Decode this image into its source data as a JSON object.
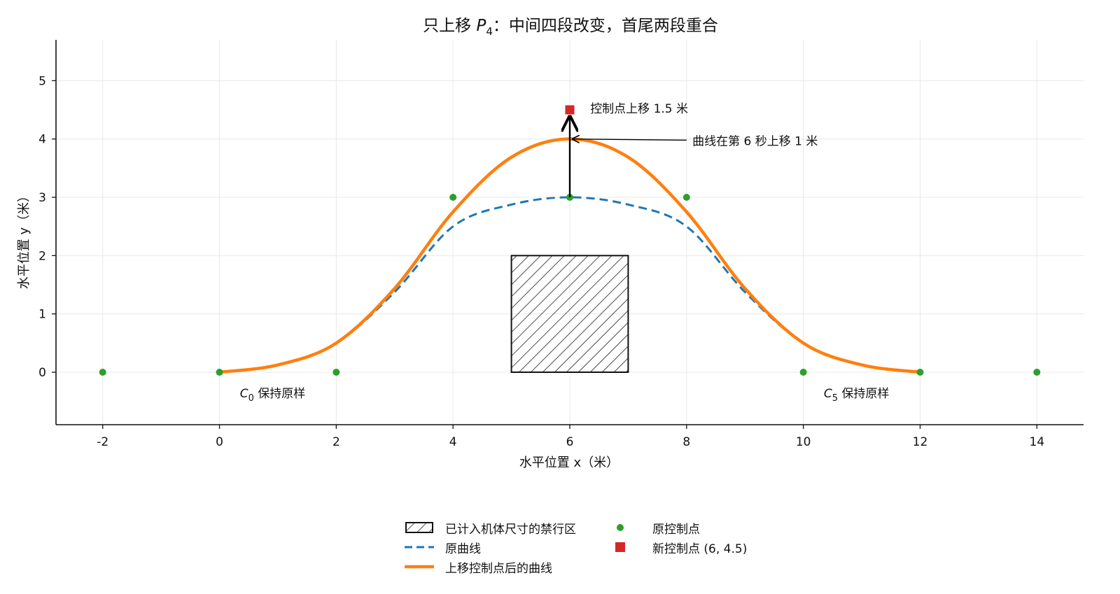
{
  "chart_data": {
    "type": "line",
    "title_main": "只上移 ",
    "title_var": "P",
    "title_sub": "4",
    "title_rest": "：中间四段改变，首尾两段重合",
    "xlabel": "水平位置 x（米）",
    "ylabel": "水平位置 y（米）",
    "xlim": [
      -2.8,
      14.8
    ],
    "ylim": [
      -0.9,
      5.7
    ],
    "xticks": [
      -2,
      0,
      2,
      4,
      6,
      8,
      10,
      12,
      14
    ],
    "yticks": [
      0,
      1,
      2,
      3,
      4,
      5
    ],
    "grid": true,
    "original_control_points": [
      [
        -2,
        0
      ],
      [
        0,
        0
      ],
      [
        2,
        0
      ],
      [
        4,
        3
      ],
      [
        6,
        3
      ],
      [
        8,
        3
      ],
      [
        10,
        0
      ],
      [
        12,
        0
      ],
      [
        14,
        0
      ]
    ],
    "new_control_point": [
      6,
      4.5
    ],
    "obstacle": {
      "x": [
        5,
        7
      ],
      "y": [
        0,
        2
      ]
    },
    "series": [
      {
        "name": "原曲线",
        "style": "dashed",
        "color": "#1f77b4",
        "x": [
          0,
          1,
          2,
          3,
          4,
          5,
          6,
          7,
          8,
          9,
          10,
          11,
          12
        ],
        "y": [
          0,
          0.125,
          0.5,
          1.375,
          2.5,
          2.875,
          3.0,
          2.875,
          2.5,
          1.375,
          0.5,
          0.125,
          0
        ]
      },
      {
        "name": "上移控制点后的曲线",
        "style": "solid",
        "color": "#ff7f0e",
        "x": [
          0,
          1,
          2,
          3,
          4,
          5,
          6,
          7,
          8,
          9,
          10,
          11,
          12
        ],
        "y": [
          0,
          0.125,
          0.5,
          1.4375,
          2.75,
          3.6875,
          4.0,
          3.6875,
          2.75,
          1.4375,
          0.5,
          0.125,
          0
        ]
      }
    ],
    "annotations": {
      "control_up": "控制点上移 1.5 米",
      "curve_up": "曲线在第 6 秒上移 1 米",
      "c0_var": "C",
      "c0_sub": "0",
      "c0_text": " 保持原样",
      "c5_var": "C",
      "c5_sub": "5",
      "c5_text": " 保持原样"
    },
    "legend": {
      "placement": "bottom-center",
      "items": [
        {
          "label": "已计入机体尺寸的禁行区",
          "symbol": "hatch"
        },
        {
          "label": "原曲线",
          "symbol": "dashed-line"
        },
        {
          "label": "上移控制点后的曲线",
          "symbol": "solid-line"
        },
        {
          "label": "原控制点",
          "symbol": "green-dot"
        },
        {
          "label": "新控制点 (6, 4.5)",
          "symbol": "red-square"
        }
      ]
    },
    "colors": {
      "original": "#1f77b4",
      "modified": "#ff7f0e",
      "control": "#2ca02c",
      "new_control": "#d62728"
    }
  }
}
